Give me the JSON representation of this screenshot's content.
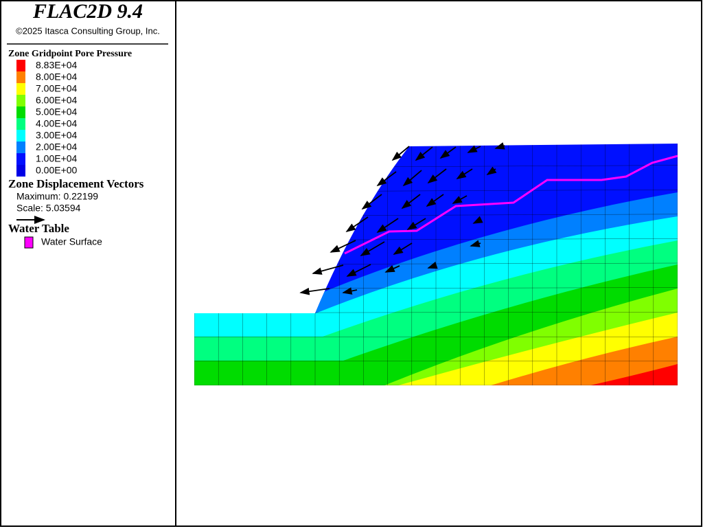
{
  "header": {
    "title": "FLAC2D 9.4",
    "copyright": "©2025 Itasca Consulting Group, Inc."
  },
  "legend": {
    "pore_pressure": {
      "title": "Zone Gridpoint Pore Pressure",
      "items": [
        {
          "label": "8.83E+04",
          "color": "#ff0000"
        },
        {
          "label": "8.00E+04",
          "color": "#ff8000"
        },
        {
          "label": "7.00E+04",
          "color": "#ffff00"
        },
        {
          "label": "6.00E+04",
          "color": "#80ff00"
        },
        {
          "label": "5.00E+04",
          "color": "#00dc00"
        },
        {
          "label": "4.00E+04",
          "color": "#00ff80"
        },
        {
          "label": "3.00E+04",
          "color": "#00ffff"
        },
        {
          "label": "2.00E+04",
          "color": "#0080ff"
        },
        {
          "label": "1.00E+04",
          "color": "#0010ff"
        },
        {
          "label": "0.00E+00",
          "color": "#0000e6"
        }
      ]
    },
    "displacement": {
      "title": "Zone Displacement Vectors",
      "maximum": "Maximum: 0.22199",
      "scale": "Scale: 5.03594"
    },
    "water_table": {
      "title": "Water Table",
      "items": [
        {
          "label": "Water Surface",
          "color": "#ff00ff"
        }
      ]
    }
  }
}
